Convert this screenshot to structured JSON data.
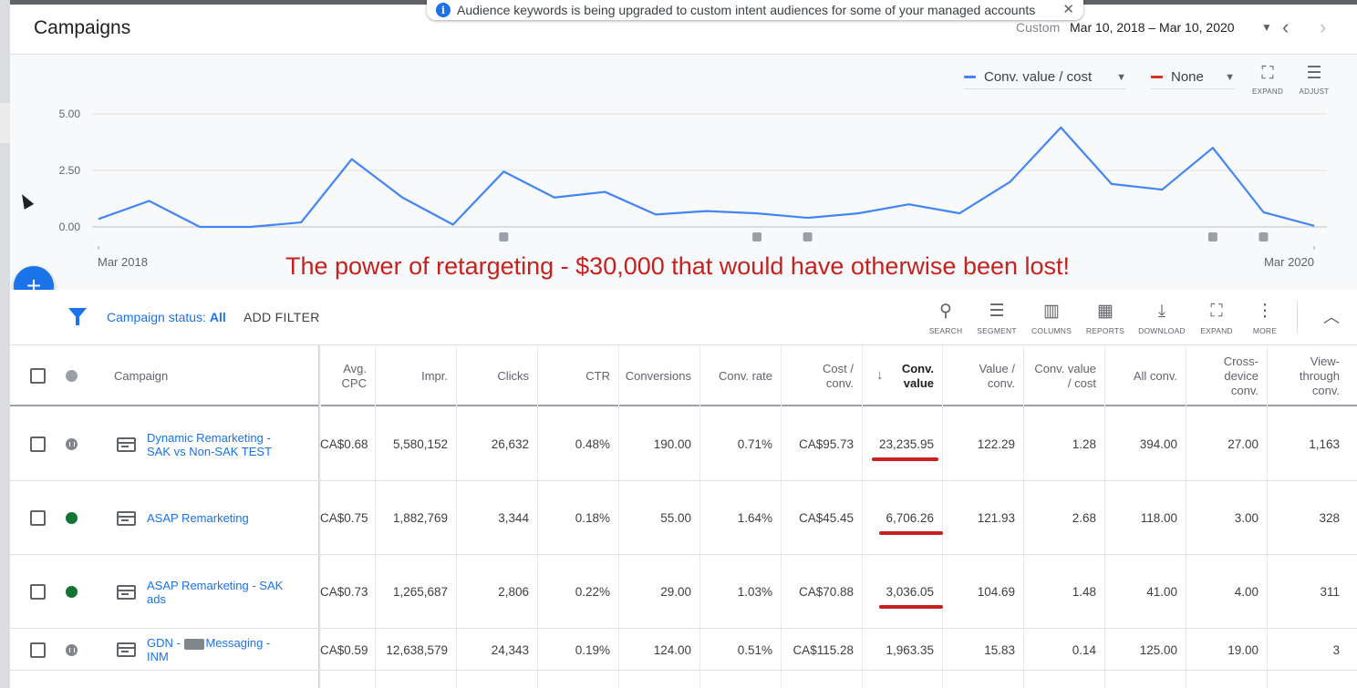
{
  "header": {
    "title": "Campaigns",
    "date_label": "Custom",
    "date_range": "Mar 10, 2018 – Mar 10, 2020"
  },
  "notice": {
    "text": "Audience keywords is being upgraded to custom intent audiences for some of your managed accounts",
    "close": "✕"
  },
  "chart_controls": {
    "metric_1": "Conv. value / cost",
    "metric_1_color": "#4285f4",
    "metric_2": "None",
    "metric_2_color": "#d93025",
    "expand_label": "EXPAND",
    "adjust_label": "ADJUST"
  },
  "chart_data": {
    "type": "line",
    "series": [
      {
        "values": [
          0.35,
          1.15,
          0.0,
          0.0,
          0.2,
          3.0,
          1.3,
          0.1,
          2.45,
          1.3,
          1.55,
          0.55,
          0.7,
          0.6,
          0.4,
          0.6,
          1.0,
          0.6,
          2.0,
          4.4,
          1.9,
          1.65,
          3.5,
          0.65,
          0.05
        ]
      }
    ],
    "y_ticks": [
      "5.00",
      "2.50",
      "0.00"
    ],
    "ylim": [
      0,
      5
    ],
    "x_labels": [
      "Mar 2018",
      "Mar 2020"
    ],
    "grid": true,
    "annotation_markers": 5,
    "annotation_marker_points": [
      8,
      13,
      14,
      22,
      23
    ]
  },
  "headline": "The power of retargeting - $30,000 that would have otherwise been lost!",
  "filter_bar": {
    "status_label": "Campaign status: ",
    "status_value": "All",
    "add_filter": "ADD FILTER",
    "tools": [
      "SEARCH",
      "SEGMENT",
      "COLUMNS",
      "REPORTS",
      "DOWNLOAD",
      "EXPAND",
      "MORE"
    ]
  },
  "table": {
    "headers": {
      "campaign": "Campaign",
      "avg_cpc": "Avg. CPC",
      "impr": "Impr.",
      "clicks": "Clicks",
      "ctr": "CTR",
      "conversions": "Conversions",
      "conv_rate": "Conv. rate",
      "cost_conv": "Cost / conv.",
      "conv_value": "Conv. value",
      "value_conv": "Value / conv.",
      "conv_value_cost": "Conv. value / cost",
      "all_conv": "All conv.",
      "cross_device": "Cross-device conv.",
      "view_through": "View-through conv."
    },
    "rows": [
      {
        "status": "paused",
        "campaign": "Dynamic Remarketing - SAK vs Non-SAK TEST",
        "avg_cpc": "CA$0.68",
        "impr": "5,580,152",
        "clicks": "26,632",
        "ctr": "0.48%",
        "conversions": "190.00",
        "conv_rate": "0.71%",
        "cost_conv": "CA$95.73",
        "conv_value": "23,235.95",
        "value_conv": "122.29",
        "conv_value_cost": "1.28",
        "all_conv": "394.00",
        "cross_device": "27.00",
        "view_through": "1,163",
        "highlight": true
      },
      {
        "status": "enabled",
        "campaign": "ASAP Remarketing",
        "avg_cpc": "CA$0.75",
        "impr": "1,882,769",
        "clicks": "3,344",
        "ctr": "0.18%",
        "conversions": "55.00",
        "conv_rate": "1.64%",
        "cost_conv": "CA$45.45",
        "conv_value": "6,706.26",
        "value_conv": "121.93",
        "conv_value_cost": "2.68",
        "all_conv": "118.00",
        "cross_device": "3.00",
        "view_through": "328",
        "highlight": true
      },
      {
        "status": "enabled",
        "campaign": "ASAP Remarketing - SAK ads",
        "avg_cpc": "CA$0.73",
        "impr": "1,265,687",
        "clicks": "2,806",
        "ctr": "0.22%",
        "conversions": "29.00",
        "conv_rate": "1.03%",
        "cost_conv": "CA$70.88",
        "conv_value": "3,036.05",
        "value_conv": "104.69",
        "conv_value_cost": "1.48",
        "all_conv": "41.00",
        "cross_device": "4.00",
        "view_through": "311",
        "highlight": true
      },
      {
        "status": "paused",
        "campaign_prefix": "GDN -",
        "campaign_suffix": "Messaging - INM",
        "avg_cpc": "CA$0.59",
        "impr": "12,638,579",
        "clicks": "24,343",
        "ctr": "0.19%",
        "conversions": "124.00",
        "conv_rate": "0.51%",
        "cost_conv": "CA$115.28",
        "conv_value": "1,963.35",
        "value_conv": "15.83",
        "conv_value_cost": "0.14",
        "all_conv": "125.00",
        "cross_device": "19.00",
        "view_through": "3",
        "highlight": false
      }
    ]
  }
}
